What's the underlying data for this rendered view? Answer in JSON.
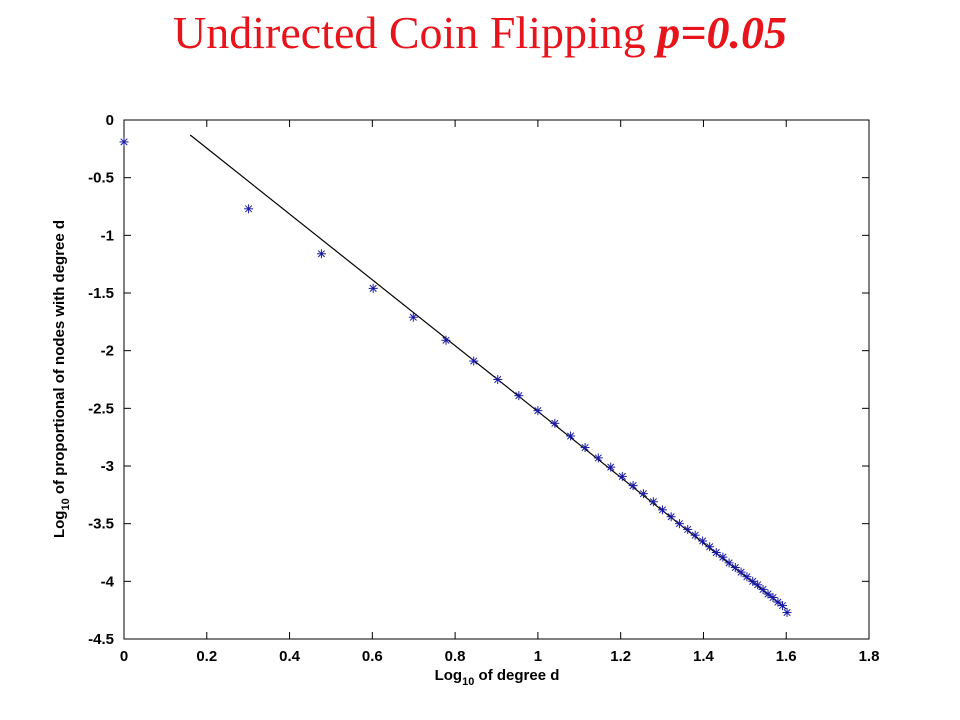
{
  "title": {
    "main": "Undirected Coin Flipping ",
    "param": "p=0.05"
  },
  "colors": {
    "title": "#e8141b",
    "points": "#1a1aa6",
    "line": "#000000"
  },
  "chart_data": {
    "type": "scatter",
    "xlabel": {
      "prefix": "Log",
      "sub": "10",
      "suffix": " of degree d"
    },
    "ylabel": {
      "prefix": "Log",
      "sub": "10",
      "suffix": " of proportional of nodes with degree d"
    },
    "xlim": [
      0,
      1.8
    ],
    "ylim": [
      -4.5,
      0
    ],
    "xticks": [
      0,
      0.2,
      0.4,
      0.6,
      0.8,
      1,
      1.2,
      1.4,
      1.6,
      1.8
    ],
    "xtick_labels": [
      "0",
      "0.2",
      "0.4",
      "0.6",
      "0.8",
      "1",
      "1.2",
      "1.4",
      "1.6",
      "1.8"
    ],
    "yticks": [
      0,
      -0.5,
      -1,
      -1.5,
      -2,
      -2.5,
      -3,
      -3.5,
      -4,
      -4.5
    ],
    "ytick_labels": [
      "0",
      "-0.5",
      "-1",
      "-1.5",
      "-2",
      "-2.5",
      "-3",
      "-3.5",
      "-4",
      "-4.5"
    ],
    "grid": false,
    "marker": "asterisk",
    "series": [
      {
        "type": "scatter",
        "points": [
          [
            0,
            -0.19
          ],
          [
            0.301,
            -0.77
          ],
          [
            0.477,
            -1.16
          ],
          [
            0.602,
            -1.46
          ],
          [
            0.699,
            -1.71
          ],
          [
            0.778,
            -1.91
          ],
          [
            0.845,
            -2.09
          ],
          [
            0.903,
            -2.25
          ],
          [
            0.954,
            -2.39
          ],
          [
            1.0,
            -2.52
          ],
          [
            1.041,
            -2.63
          ],
          [
            1.079,
            -2.74
          ],
          [
            1.114,
            -2.84
          ],
          [
            1.146,
            -2.93
          ],
          [
            1.176,
            -3.01
          ],
          [
            1.204,
            -3.09
          ],
          [
            1.23,
            -3.17
          ],
          [
            1.255,
            -3.24
          ],
          [
            1.279,
            -3.31
          ],
          [
            1.301,
            -3.38
          ],
          [
            1.322,
            -3.44
          ],
          [
            1.342,
            -3.5
          ],
          [
            1.362,
            -3.55
          ],
          [
            1.38,
            -3.6
          ],
          [
            1.398,
            -3.65
          ],
          [
            1.415,
            -3.7
          ],
          [
            1.431,
            -3.75
          ],
          [
            1.447,
            -3.79
          ],
          [
            1.462,
            -3.84
          ],
          [
            1.477,
            -3.88
          ],
          [
            1.491,
            -3.92
          ],
          [
            1.505,
            -3.96
          ],
          [
            1.519,
            -4.0
          ],
          [
            1.531,
            -4.03
          ],
          [
            1.544,
            -4.07
          ],
          [
            1.556,
            -4.11
          ],
          [
            1.568,
            -4.14
          ],
          [
            1.58,
            -4.18
          ],
          [
            1.591,
            -4.21
          ],
          [
            1.602,
            -4.27
          ]
        ]
      },
      {
        "type": "line",
        "points": [
          [
            0.16,
            -0.13
          ],
          [
            1.6,
            -4.24
          ]
        ]
      }
    ]
  }
}
